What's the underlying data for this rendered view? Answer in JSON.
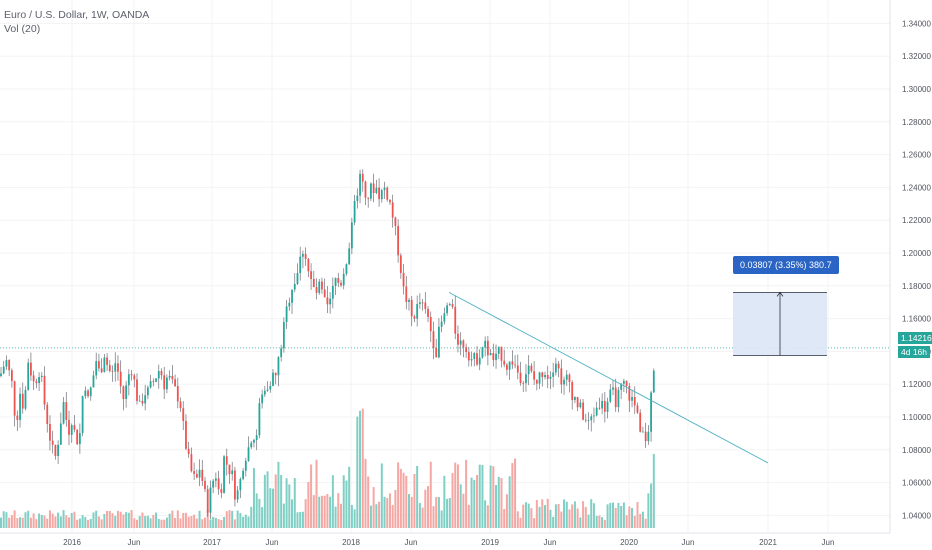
{
  "legend": {
    "symbol": "Euro / U.S. Dollar, 1W, OANDA",
    "volume": "Vol (20)"
  },
  "price_badge": {
    "value": "1.14216",
    "bg": "#26a69a"
  },
  "countdown_badge": {
    "value": "4d 16h",
    "bg": "#26a69a"
  },
  "measure_label": "0.03807 (3.35%) 380.7",
  "colors": {
    "up": "#26a69a",
    "down": "#ef5350",
    "vol_up": "#7fcfc4",
    "vol_down": "#f4a7a3",
    "trendline": "#4fb2c4",
    "measure_fill": "#dbe6f6",
    "measure_stroke": "#2a2e39",
    "price_line": "#26a69a"
  },
  "chart_data": {
    "type": "candlestick",
    "ylim": [
      1.025,
      1.35
    ],
    "y_ticks": [
      "1.34000",
      "1.32000",
      "1.30000",
      "1.28000",
      "1.26000",
      "1.24000",
      "1.22000",
      "1.20000",
      "1.18000",
      "1.16000",
      "1.14000",
      "1.12000",
      "1.10000",
      "1.08000",
      "1.06000",
      "1.04000"
    ],
    "x_ticks": [
      "2016",
      "Jun",
      "2017",
      "Jun",
      "2018",
      "Jun",
      "2019",
      "Jun",
      "2020",
      "Jun",
      "2021",
      "Jun"
    ],
    "path_points": [
      [
        0,
        1.125
      ],
      [
        6,
        1.135
      ],
      [
        12,
        1.12
      ],
      [
        16,
        1.095
      ],
      [
        20,
        1.115
      ],
      [
        24,
        1.105
      ],
      [
        28,
        1.135
      ],
      [
        34,
        1.12
      ],
      [
        40,
        1.13
      ],
      [
        44,
        1.11
      ],
      [
        48,
        1.095
      ],
      [
        52,
        1.08
      ],
      [
        56,
        1.075
      ],
      [
        60,
        1.095
      ],
      [
        64,
        1.11
      ],
      [
        68,
        1.09
      ],
      [
        72,
        1.1
      ],
      [
        76,
        1.085
      ],
      [
        80,
        1.09
      ],
      [
        84,
        1.125
      ],
      [
        88,
        1.11
      ],
      [
        92,
        1.12
      ],
      [
        96,
        1.135
      ],
      [
        100,
        1.125
      ],
      [
        104,
        1.14
      ],
      [
        108,
        1.13
      ],
      [
        112,
        1.125
      ],
      [
        116,
        1.135
      ],
      [
        120,
        1.12
      ],
      [
        124,
        1.11
      ],
      [
        128,
        1.125
      ],
      [
        132,
        1.13
      ],
      [
        136,
        1.115
      ],
      [
        140,
        1.105
      ],
      [
        144,
        1.115
      ],
      [
        148,
        1.115
      ],
      [
        152,
        1.12
      ],
      [
        156,
        1.125
      ],
      [
        160,
        1.13
      ],
      [
        164,
        1.12
      ],
      [
        168,
        1.125
      ],
      [
        172,
        1.12
      ],
      [
        176,
        1.115
      ],
      [
        180,
        1.11
      ],
      [
        184,
        1.09
      ],
      [
        188,
        1.075
      ],
      [
        192,
        1.065
      ],
      [
        196,
        1.06
      ],
      [
        200,
        1.07
      ],
      [
        204,
        1.055
      ],
      [
        208,
        1.045
      ],
      [
        212,
        1.06
      ],
      [
        216,
        1.065
      ],
      [
        220,
        1.05
      ],
      [
        224,
        1.075
      ],
      [
        228,
        1.07
      ],
      [
        232,
        1.065
      ],
      [
        236,
        1.05
      ],
      [
        240,
        1.06
      ],
      [
        244,
        1.075
      ],
      [
        248,
        1.08
      ],
      [
        252,
        1.09
      ],
      [
        256,
        1.085
      ],
      [
        260,
        1.11
      ],
      [
        264,
        1.115
      ],
      [
        268,
        1.12
      ],
      [
        272,
        1.125
      ],
      [
        276,
        1.125
      ],
      [
        280,
        1.14
      ],
      [
        284,
        1.155
      ],
      [
        288,
        1.17
      ],
      [
        292,
        1.18
      ],
      [
        296,
        1.185
      ],
      [
        300,
        1.195
      ],
      [
        304,
        1.205
      ],
      [
        308,
        1.19
      ],
      [
        312,
        1.18
      ],
      [
        316,
        1.175
      ],
      [
        320,
        1.18
      ],
      [
        324,
        1.17
      ],
      [
        328,
        1.165
      ],
      [
        332,
        1.175
      ],
      [
        336,
        1.185
      ],
      [
        340,
        1.18
      ],
      [
        344,
        1.19
      ],
      [
        348,
        1.2
      ],
      [
        352,
        1.215
      ],
      [
        356,
        1.235
      ],
      [
        360,
        1.245
      ],
      [
        364,
        1.24
      ],
      [
        368,
        1.235
      ],
      [
        372,
        1.24
      ],
      [
        376,
        1.24
      ],
      [
        380,
        1.235
      ],
      [
        384,
        1.24
      ],
      [
        388,
        1.235
      ],
      [
        392,
        1.225
      ],
      [
        396,
        1.21
      ],
      [
        400,
        1.195
      ],
      [
        404,
        1.175
      ],
      [
        408,
        1.17
      ],
      [
        412,
        1.16
      ],
      [
        416,
        1.165
      ],
      [
        420,
        1.17
      ],
      [
        424,
        1.165
      ],
      [
        428,
        1.16
      ],
      [
        432,
        1.15
      ],
      [
        436,
        1.14
      ],
      [
        440,
        1.155
      ],
      [
        444,
        1.16
      ],
      [
        448,
        1.17
      ],
      [
        452,
        1.165
      ],
      [
        456,
        1.15
      ],
      [
        460,
        1.145
      ],
      [
        464,
        1.145
      ],
      [
        468,
        1.14
      ],
      [
        472,
        1.135
      ],
      [
        476,
        1.135
      ],
      [
        480,
        1.14
      ],
      [
        484,
        1.145
      ],
      [
        488,
        1.14
      ],
      [
        492,
        1.135
      ],
      [
        496,
        1.135
      ],
      [
        500,
        1.14
      ],
      [
        504,
        1.135
      ],
      [
        508,
        1.13
      ],
      [
        512,
        1.135
      ],
      [
        516,
        1.13
      ],
      [
        520,
        1.125
      ],
      [
        524,
        1.125
      ],
      [
        528,
        1.13
      ],
      [
        532,
        1.125
      ],
      [
        536,
        1.12
      ],
      [
        540,
        1.125
      ],
      [
        544,
        1.13
      ],
      [
        548,
        1.125
      ],
      [
        552,
        1.13
      ],
      [
        556,
        1.135
      ],
      [
        560,
        1.125
      ],
      [
        564,
        1.12
      ],
      [
        568,
        1.125
      ],
      [
        572,
        1.115
      ],
      [
        576,
        1.11
      ],
      [
        580,
        1.105
      ],
      [
        584,
        1.1
      ],
      [
        588,
        1.095
      ],
      [
        592,
        1.1
      ],
      [
        596,
        1.105
      ],
      [
        600,
        1.11
      ],
      [
        604,
        1.105
      ],
      [
        608,
        1.11
      ],
      [
        612,
        1.115
      ],
      [
        616,
        1.11
      ],
      [
        620,
        1.115
      ],
      [
        624,
        1.12
      ],
      [
        628,
        1.115
      ],
      [
        632,
        1.11
      ],
      [
        636,
        1.105
      ],
      [
        640,
        1.095
      ],
      [
        644,
        1.085
      ],
      [
        648,
        1.09
      ],
      [
        652,
        1.125
      ],
      [
        656,
        1.142
      ]
    ],
    "trendline": {
      "x1": 449,
      "y1": 1.176,
      "x2": 768,
      "y2": 1.072
    },
    "measure": {
      "x1": 733,
      "x2": 827,
      "y_top": 1.176,
      "y_bottom": 1.1375
    }
  }
}
